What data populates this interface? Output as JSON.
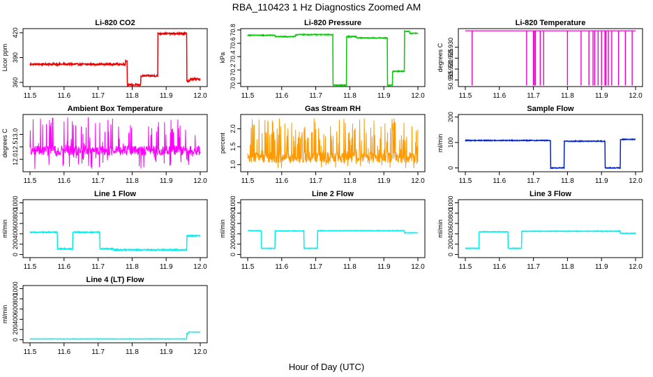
{
  "figure": {
    "title": "RBA_110423  1 Hz Diagnostics Zoomed AM",
    "xlabel": "Hour of Day (UTC)"
  },
  "chart_data": [
    {
      "id": "co2",
      "type": "line",
      "title": "Li-820 CO2",
      "ylabel": "Licor ppm",
      "color": "#ee0000",
      "xlim": [
        11.5,
        12.0
      ],
      "xticks": [
        11.5,
        11.6,
        11.7,
        11.8,
        11.9,
        12.0
      ],
      "xtick_labels": [
        "11.5",
        "11.6",
        "11.7",
        "11.8",
        "11.9",
        "12.0"
      ],
      "ylim": [
        355,
        425
      ],
      "yticks": [
        360,
        390,
        420
      ],
      "ytick_labels": [
        "360",
        "390",
        "420"
      ],
      "noise": 1.0,
      "spike_prob": 0,
      "segments": [
        [
          11.5,
          11.78,
          382
        ],
        [
          11.78,
          11.785,
          386
        ],
        [
          11.785,
          11.825,
          357
        ],
        [
          11.825,
          11.875,
          368
        ],
        [
          11.875,
          11.96,
          419
        ],
        [
          11.96,
          11.97,
          362
        ],
        [
          11.97,
          12.0,
          364
        ]
      ]
    },
    {
      "id": "pressure",
      "type": "line",
      "title": "Li-820 Pressure",
      "ylabel": "kPa",
      "color": "#00cc00",
      "xlim": [
        11.5,
        12.0
      ],
      "xticks": [
        11.5,
        11.6,
        11.7,
        11.8,
        11.9,
        12.0
      ],
      "xtick_labels": [
        "11.5",
        "11.6",
        "11.7",
        "11.8",
        "11.9",
        "12.0"
      ],
      "ylim": [
        69.95,
        70.82
      ],
      "yticks": [
        70.0,
        70.2,
        70.4,
        70.6,
        70.8
      ],
      "ytick_labels": [
        "70.0",
        "70.2",
        "70.4",
        "70.6",
        "70.8"
      ],
      "noise": 0.006,
      "spike_prob": 0,
      "segments": [
        [
          11.5,
          11.58,
          70.72
        ],
        [
          11.58,
          11.64,
          70.7
        ],
        [
          11.64,
          11.75,
          70.73
        ],
        [
          11.75,
          11.79,
          69.97
        ],
        [
          11.79,
          11.82,
          70.7
        ],
        [
          11.82,
          11.91,
          70.68
        ],
        [
          11.91,
          11.925,
          69.97
        ],
        [
          11.925,
          11.96,
          70.18
        ],
        [
          11.96,
          11.975,
          70.78
        ],
        [
          11.975,
          12.0,
          70.75
        ]
      ]
    },
    {
      "id": "li_temp",
      "type": "line",
      "title": "Li-820 Temperature",
      "ylabel": "degrees C",
      "color": "#ee00cc",
      "xlim": [
        11.5,
        12.0
      ],
      "xticks": [
        11.5,
        11.6,
        11.7,
        11.8,
        11.9,
        12.0
      ],
      "xtick_labels": [
        "11.5",
        "11.6",
        "11.7",
        "11.8",
        "11.9",
        "12.0"
      ],
      "ylim": [
        50.912,
        50.9385
      ],
      "yticks": [
        50.915,
        50.92,
        50.925,
        50.93
      ],
      "ytick_labels": [
        "50.915",
        "50.920",
        "50.925",
        "50.930"
      ],
      "baseline": 50.9375,
      "low": 50.9125,
      "drops": [
        11.52,
        11.68,
        11.7,
        11.703,
        11.706,
        11.72,
        11.73,
        11.8,
        11.84,
        11.863,
        11.875,
        11.88,
        11.89,
        11.9,
        11.91,
        11.913,
        11.92,
        11.93,
        11.95,
        11.97,
        11.99
      ]
    },
    {
      "id": "ambient",
      "type": "line",
      "title": "Ambient Box Temperature",
      "ylabel": "degrees C",
      "color": "#ff00ff",
      "xlim": [
        11.5,
        12.0
      ],
      "xticks": [
        11.5,
        11.6,
        11.7,
        11.8,
        11.9,
        12.0
      ],
      "xtick_labels": [
        "11.5",
        "11.6",
        "11.7",
        "11.8",
        "11.9",
        "12.0"
      ],
      "ylim": [
        11.5,
        13.8
      ],
      "yticks": [
        12.0,
        12.5,
        13.0
      ],
      "ytick_labels": [
        "12.0",
        "12.5",
        "13.0"
      ],
      "noise": 0.2,
      "spike_prob": 0.25,
      "spike_range": [
        11.6,
        13.7
      ],
      "segments": [
        [
          11.5,
          12.0,
          12.35
        ]
      ]
    },
    {
      "id": "rh",
      "type": "line",
      "title": "Gas Stream RH",
      "ylabel": "percent",
      "color": "#ff9900",
      "xlim": [
        11.5,
        12.0
      ],
      "xticks": [
        11.5,
        11.6,
        11.7,
        11.8,
        11.9,
        12.0
      ],
      "xtick_labels": [
        "11.5",
        "11.6",
        "11.7",
        "11.8",
        "11.9",
        "12.0"
      ],
      "ylim": [
        0.8,
        2.4
      ],
      "yticks": [
        1.0,
        1.5,
        2.0
      ],
      "ytick_labels": [
        "1.0",
        "1.5",
        "2.0"
      ],
      "noise": 0.15,
      "spike_prob": 0.35,
      "spike_range": [
        0.9,
        2.3
      ],
      "segments": [
        [
          11.5,
          12.0,
          1.2
        ]
      ]
    },
    {
      "id": "sample_flow",
      "type": "line",
      "title": "Sample Flow",
      "ylabel": "ml/min",
      "color": "#0022cc",
      "xlim": [
        11.5,
        12.0
      ],
      "xticks": [
        11.5,
        11.6,
        11.7,
        11.8,
        11.9,
        12.0
      ],
      "xtick_labels": [
        "11.5",
        "11.6",
        "11.7",
        "11.8",
        "11.9",
        "12.0"
      ],
      "ylim": [
        -15,
        210
      ],
      "yticks": [
        0,
        100,
        200
      ],
      "ytick_labels": [
        "0",
        "100",
        "200"
      ],
      "noise": 1.5,
      "spike_prob": 0,
      "segments": [
        [
          11.5,
          11.75,
          108
        ],
        [
          11.75,
          11.79,
          0
        ],
        [
          11.79,
          11.91,
          105
        ],
        [
          11.91,
          11.955,
          0
        ],
        [
          11.955,
          12.0,
          112
        ]
      ]
    },
    {
      "id": "line1",
      "type": "line",
      "title": "Line 1 Flow",
      "ylabel": "ml/min",
      "color": "#00f0f0",
      "xlim": [
        11.5,
        12.0
      ],
      "xticks": [
        11.5,
        11.6,
        11.7,
        11.8,
        11.9,
        12.0
      ],
      "xtick_labels": [
        "11.5",
        "11.6",
        "11.7",
        "11.8",
        "11.9",
        "12.0"
      ],
      "ylim": [
        -60,
        1060
      ],
      "yticks": [
        0,
        200,
        400,
        600,
        800,
        1000
      ],
      "ytick_labels": [
        "0",
        "200",
        "400",
        "600",
        "800",
        "1000"
      ],
      "noise": 10,
      "spike_prob": 0,
      "segments": [
        [
          11.5,
          11.58,
          430
        ],
        [
          11.58,
          11.625,
          110
        ],
        [
          11.625,
          11.705,
          430
        ],
        [
          11.705,
          11.745,
          110
        ],
        [
          11.745,
          11.96,
          90
        ],
        [
          11.96,
          12.0,
          360
        ]
      ]
    },
    {
      "id": "line2",
      "type": "line",
      "title": "Line 2 Flow",
      "ylabel": "ml/min",
      "color": "#00f0f0",
      "xlim": [
        11.5,
        12.0
      ],
      "xticks": [
        11.5,
        11.6,
        11.7,
        11.8,
        11.9,
        12.0
      ],
      "xtick_labels": [
        "11.5",
        "11.6",
        "11.7",
        "11.8",
        "11.9",
        "12.0"
      ],
      "ylim": [
        -60,
        1060
      ],
      "yticks": [
        0,
        200,
        400,
        600,
        800,
        1000
      ],
      "ytick_labels": [
        "0",
        "200",
        "400",
        "600",
        "800",
        "1000"
      ],
      "noise": 5,
      "spike_prob": 0,
      "segments": [
        [
          11.5,
          11.54,
          460
        ],
        [
          11.54,
          11.58,
          120
        ],
        [
          11.58,
          11.665,
          455
        ],
        [
          11.665,
          11.705,
          120
        ],
        [
          11.705,
          11.96,
          460
        ],
        [
          11.96,
          12.0,
          420
        ]
      ]
    },
    {
      "id": "line3",
      "type": "line",
      "title": "Line 3 Flow",
      "ylabel": "ml/min",
      "color": "#00f0f0",
      "xlim": [
        11.5,
        12.0
      ],
      "xticks": [
        11.5,
        11.6,
        11.7,
        11.8,
        11.9,
        12.0
      ],
      "xtick_labels": [
        "11.5",
        "11.6",
        "11.7",
        "11.8",
        "11.9",
        "12.0"
      ],
      "ylim": [
        -60,
        1060
      ],
      "yticks": [
        0,
        200,
        400,
        600,
        800,
        1000
      ],
      "ytick_labels": [
        "0",
        "200",
        "400",
        "600",
        "800",
        "1000"
      ],
      "noise": 5,
      "spike_prob": 0,
      "segments": [
        [
          11.5,
          11.54,
          120
        ],
        [
          11.54,
          11.625,
          440
        ],
        [
          11.625,
          11.665,
          120
        ],
        [
          11.665,
          11.955,
          450
        ],
        [
          11.955,
          12.0,
          410
        ]
      ]
    },
    {
      "id": "line4",
      "type": "line",
      "title": "Line 4 (LT) Flow",
      "ylabel": "ml/min",
      "color": "#00f0f0",
      "xlim": [
        11.5,
        12.0
      ],
      "xticks": [
        11.5,
        11.6,
        11.7,
        11.8,
        11.9,
        12.0
      ],
      "xtick_labels": [
        "11.5",
        "11.6",
        "11.7",
        "11.8",
        "11.9",
        "12.0"
      ],
      "ylim": [
        -60,
        1060
      ],
      "yticks": [
        0,
        200,
        400,
        600,
        800,
        1000
      ],
      "ytick_labels": [
        "0",
        "200",
        "400",
        "600",
        "800",
        "1000"
      ],
      "noise": 3,
      "spike_prob": 0,
      "segments": [
        [
          11.5,
          11.96,
          15
        ],
        [
          11.96,
          11.965,
          120
        ],
        [
          11.965,
          12.0,
          150
        ]
      ]
    }
  ]
}
